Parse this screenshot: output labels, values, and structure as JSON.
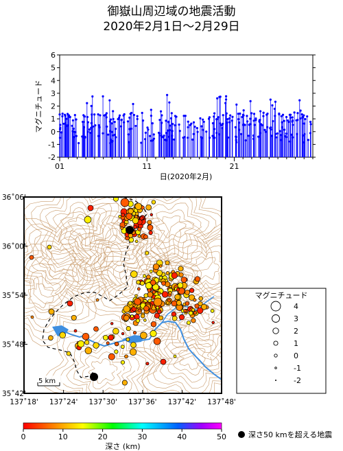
{
  "title_line1": "御嶽山周辺域の地震活動",
  "title_line2": "2020年2月1日～2月29日",
  "timeseries": {
    "ylabel": "マグニチュード",
    "xlabel": "日(2020年2月)",
    "y_ticks": [
      "6",
      "5",
      "4",
      "3",
      "2",
      "1",
      "0",
      "-1",
      "-2"
    ],
    "x_ticks": [
      "01",
      "11",
      "21"
    ],
    "ylim": [
      -2,
      6
    ],
    "xlim": [
      1,
      30
    ],
    "bar_color": "#0000ff"
  },
  "map": {
    "lat_ticks": [
      "36˚06'",
      "36˚00'",
      "35˚54'",
      "35˚48'",
      "35˚42'"
    ],
    "lon_ticks": [
      "137˚18'",
      "137˚24'",
      "137˚30'",
      "137˚36'",
      "137˚42'",
      "137˚48'"
    ],
    "scale_label": "5 km",
    "contour_color": "#c89a6a",
    "river_color": "#3f8fe0"
  },
  "magnitude_legend": {
    "title": "マグニチュード",
    "items": [
      "4",
      "3",
      "2",
      "1",
      "0",
      "-1",
      "-2"
    ]
  },
  "depth_scale": {
    "ticks": [
      "0",
      "10",
      "20",
      "30",
      "40",
      "50"
    ],
    "label": "深さ (km)"
  },
  "deep_quake_label": "深さ50 kmを超える地震"
}
